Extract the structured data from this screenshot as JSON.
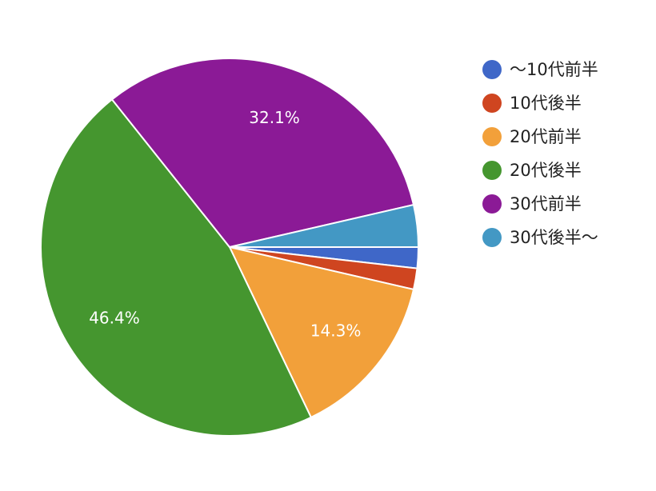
{
  "chart_data": {
    "type": "pie",
    "categories": [
      "〜10代前半",
      "10代後半",
      "20代前半",
      "20代後半",
      "30代前半",
      "30代後半〜"
    ],
    "values": [
      1.8,
      1.8,
      14.3,
      46.4,
      32.1,
      3.6
    ],
    "value_labels": [
      null,
      null,
      "14.3%",
      "46.4%",
      "32.1%",
      null
    ],
    "colors": [
      "#3f67c8",
      "#cf4520",
      "#f2a03a",
      "#45962f",
      "#8b1a96",
      "#4398c4"
    ],
    "legend": "right"
  }
}
